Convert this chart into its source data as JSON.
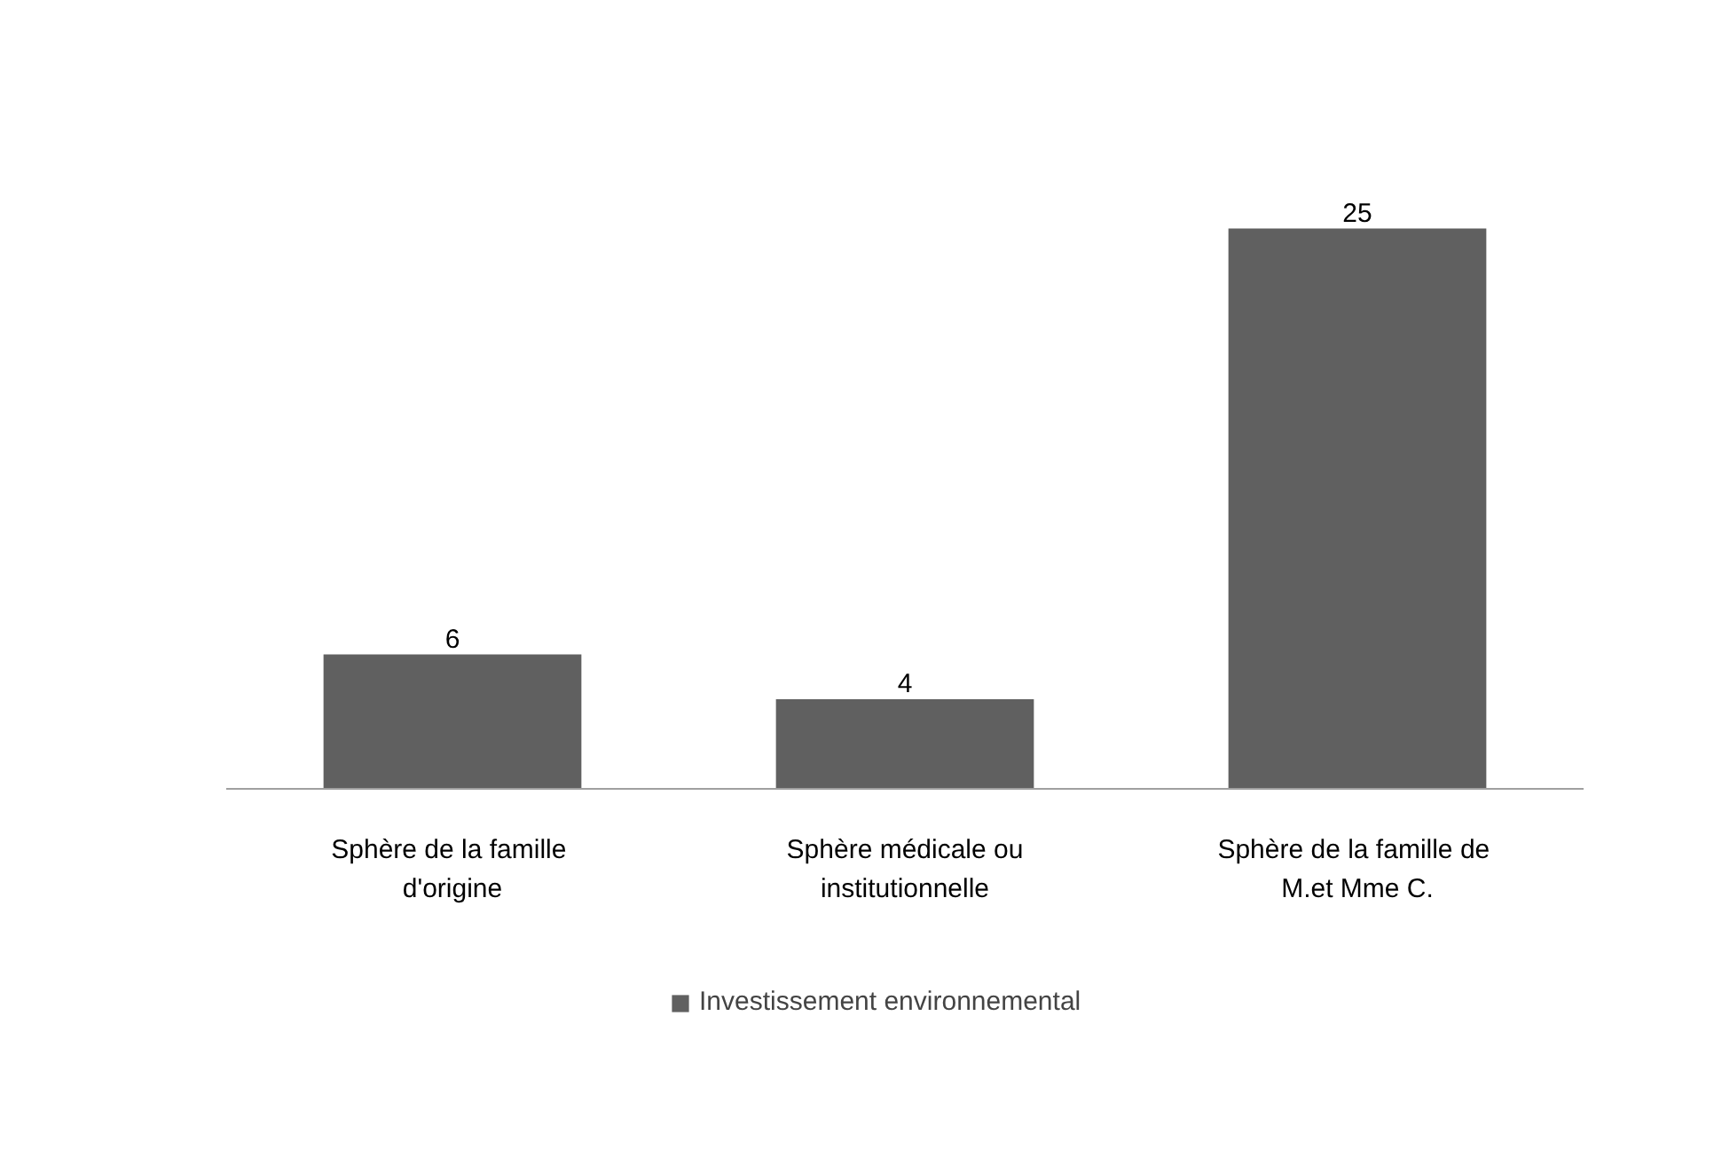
{
  "chart_data": {
    "type": "bar",
    "categories": [
      "Sphère de la  famille\nd'origine",
      "Sphère médicale ou\ninstitutionnelle",
      "Sphère de la  famille de\nM.et Mme C."
    ],
    "series": [
      {
        "name": "Investissement environnemental",
        "color": "#606060",
        "values": [
          6,
          4,
          25
        ]
      }
    ],
    "data_labels": true,
    "grid": false,
    "legend": "bottom"
  }
}
